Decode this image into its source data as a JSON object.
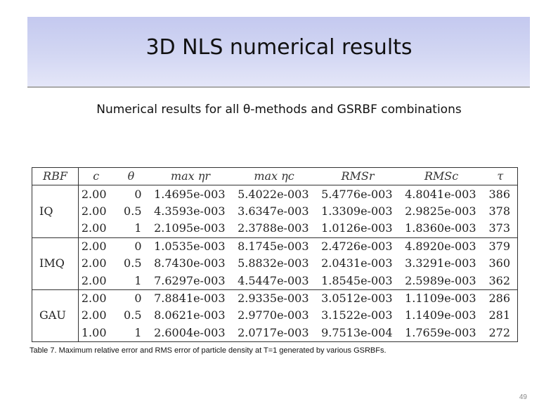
{
  "slide": {
    "title": "3D NLS numerical results",
    "subtitle": "Numerical results for all θ-methods and GSRBF combinations",
    "caption": "Table 7. Maximum relative error and RMS error of particle density at T=1 generated by various GSRBFs.",
    "page_number": "49"
  },
  "table": {
    "headers": [
      "RBF",
      "c",
      "θ",
      "max ηr",
      "max ηc",
      "RMSr",
      "RMSc",
      "τ"
    ],
    "groups": [
      {
        "rbf": "IQ",
        "rows": [
          [
            "2.00",
            "0",
            "1.4695e-003",
            "5.4022e-003",
            "5.4776e-003",
            "4.8041e-003",
            "386"
          ],
          [
            "2.00",
            "0.5",
            "4.3593e-003",
            "3.6347e-003",
            "1.3309e-003",
            "2.9825e-003",
            "378"
          ],
          [
            "2.00",
            "1",
            "2.1095e-003",
            "2.3788e-003",
            "1.0126e-003",
            "1.8360e-003",
            "373"
          ]
        ]
      },
      {
        "rbf": "IMQ",
        "rows": [
          [
            "2.00",
            "0",
            "1.0535e-003",
            "8.1745e-003",
            "2.4726e-003",
            "4.8920e-003",
            "379"
          ],
          [
            "2.00",
            "0.5",
            "8.7430e-003",
            "5.8832e-003",
            "2.0431e-003",
            "3.3291e-003",
            "360"
          ],
          [
            "2.00",
            "1",
            "7.6297e-003",
            "4.5447e-003",
            "1.8545e-003",
            "2.5989e-003",
            "362"
          ]
        ]
      },
      {
        "rbf": "GAU",
        "rows": [
          [
            "2.00",
            "0",
            "7.8841e-003",
            "2.9335e-003",
            "3.0512e-003",
            "1.1109e-003",
            "286"
          ],
          [
            "2.00",
            "0.5",
            "8.0621e-003",
            "2.9770e-003",
            "3.1522e-003",
            "1.1409e-003",
            "281"
          ],
          [
            "1.00",
            "1",
            "2.6004e-003",
            "2.0717e-003",
            "9.7513e-004",
            "1.7659e-003",
            "272"
          ]
        ]
      }
    ]
  },
  "colors": {
    "title_band_top": "#c4c9ef",
    "title_band_bottom": "#e4e6f8",
    "text": "#111111",
    "page_number": "#8a8a8a"
  }
}
